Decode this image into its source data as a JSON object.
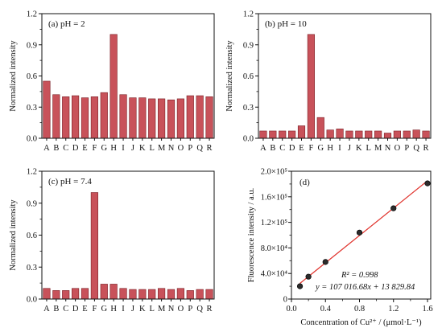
{
  "colors": {
    "bar_fill": "#c8525a",
    "bar_stroke": "#7a1e24",
    "line": "#e0322c",
    "point": "#2b2b2b",
    "axis": "#111111"
  },
  "chart_data": [
    {
      "type": "bar",
      "panel": "(a) pH = 2",
      "ylabel": "Normalized intensity",
      "xlabel": "",
      "categories": [
        "A",
        "B",
        "C",
        "D",
        "E",
        "F",
        "G",
        "H",
        "I",
        "J",
        "K",
        "L",
        "M",
        "N",
        "O",
        "P",
        "Q",
        "R"
      ],
      "values": [
        0.55,
        0.42,
        0.4,
        0.41,
        0.39,
        0.4,
        0.44,
        1.0,
        0.42,
        0.39,
        0.39,
        0.38,
        0.38,
        0.37,
        0.38,
        0.41,
        0.41,
        0.4
      ],
      "ylim": [
        0.0,
        1.2
      ],
      "yticks": [
        "0.0",
        "0.3",
        "0.6",
        "0.9",
        "1.2"
      ]
    },
    {
      "type": "bar",
      "panel": "(b) pH = 10",
      "ylabel": "Normalized intensity",
      "xlabel": "",
      "categories": [
        "A",
        "B",
        "C",
        "D",
        "E",
        "F",
        "G",
        "H",
        "I",
        "J",
        "K",
        "L",
        "M",
        "N",
        "O",
        "P",
        "Q",
        "R"
      ],
      "values": [
        0.07,
        0.07,
        0.07,
        0.07,
        0.12,
        1.0,
        0.2,
        0.08,
        0.09,
        0.07,
        0.07,
        0.07,
        0.07,
        0.05,
        0.07,
        0.07,
        0.08,
        0.07
      ],
      "ylim": [
        0.0,
        1.2
      ],
      "yticks": [
        "0.0",
        "0.3",
        "0.6",
        "0.9",
        "1.2"
      ]
    },
    {
      "type": "bar",
      "panel": "(c) pH = 7.4",
      "ylabel": "Normalized intensity",
      "xlabel": "",
      "categories": [
        "A",
        "B",
        "C",
        "D",
        "E",
        "F",
        "G",
        "H",
        "I",
        "J",
        "K",
        "L",
        "M",
        "N",
        "O",
        "P",
        "Q",
        "R"
      ],
      "values": [
        0.1,
        0.08,
        0.08,
        0.1,
        0.1,
        1.0,
        0.14,
        0.14,
        0.1,
        0.09,
        0.09,
        0.09,
        0.1,
        0.09,
        0.1,
        0.08,
        0.09,
        0.09
      ],
      "ylim": [
        0.0,
        1.2
      ],
      "yticks": [
        "0.0",
        "0.3",
        "0.6",
        "0.9",
        "1.2"
      ]
    },
    {
      "type": "scatter",
      "panel": "(d)",
      "xlabel": "Concentration of Cu²⁺ / (μmol·L⁻¹)",
      "ylabel": "Fluorescence intensity / a.u.",
      "x": [
        0.1,
        0.2,
        0.4,
        0.8,
        1.2,
        1.6
      ],
      "y": [
        20000,
        35000,
        58000,
        104000,
        142000,
        181000
      ],
      "xlim": [
        0.0,
        1.6
      ],
      "ylim": [
        0,
        200000
      ],
      "xticks": [
        "0.0",
        "0.4",
        "0.8",
        "1.2",
        "1.6"
      ],
      "yticks": [
        "0",
        "4.0×10⁴",
        "8.0×10⁴",
        "1.2×10⁵",
        "1.6×10⁵",
        "2.0×10⁵"
      ],
      "fit": {
        "slope": 107016.68,
        "intercept": 13829.84
      },
      "annotation_r2": "R² = 0.998",
      "annotation_eq": "y = 107 016.68x + 13 829.84"
    }
  ]
}
